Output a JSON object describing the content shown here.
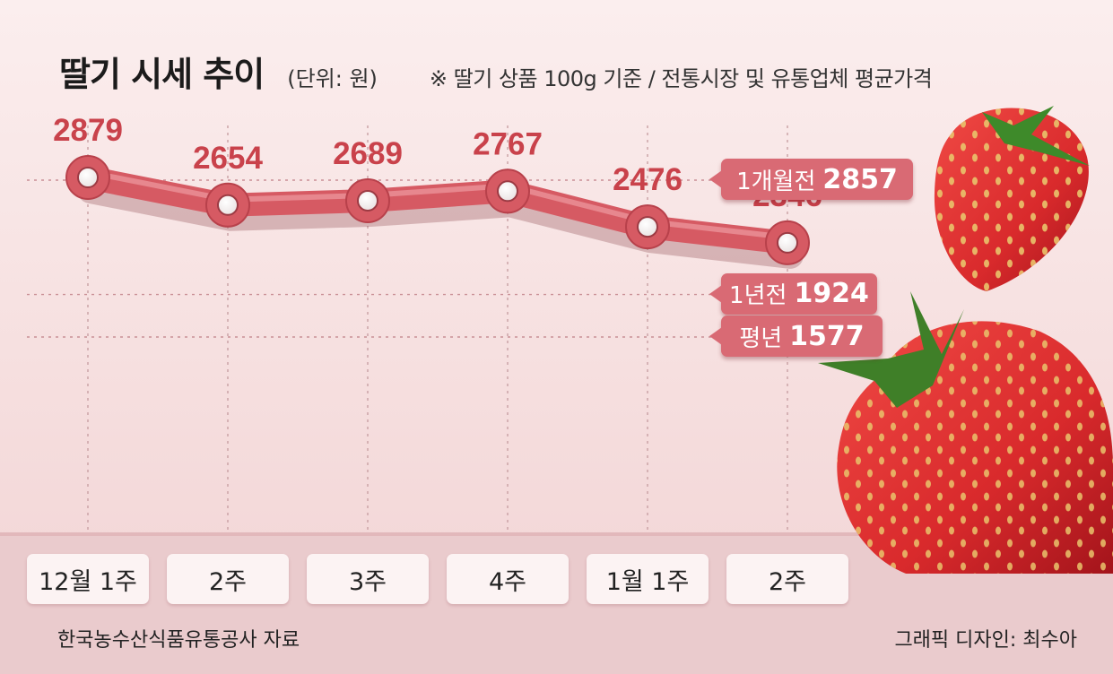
{
  "header": {
    "title": "딸기 시세 추이",
    "unit": "(단위: 원)",
    "note": "※ 딸기 상품 100g 기준 / 전통시장 및 유통업체 평균가격"
  },
  "footer": {
    "source": "한국농수산식품유통공사 자료",
    "credit": "그래픽 디자인: 최수아"
  },
  "colors": {
    "line": "#d65a63",
    "value_label": "#c9424b",
    "callout_bg": "#d96a74",
    "background": "#fbeeee"
  },
  "chart_data": {
    "type": "line",
    "categories": [
      "12월 1주",
      "2주",
      "3주",
      "4주",
      "1월 1주",
      "2주"
    ],
    "values": [
      2879,
      2654,
      2689,
      2767,
      2476,
      2346
    ],
    "reference_lines": [
      {
        "label": "1개월전",
        "value": 2857
      },
      {
        "label": "1년전",
        "value": 1924
      },
      {
        "label": "평년",
        "value": 1577
      }
    ],
    "xlabel": "",
    "ylabel": "",
    "grid": true,
    "legend": "none"
  }
}
